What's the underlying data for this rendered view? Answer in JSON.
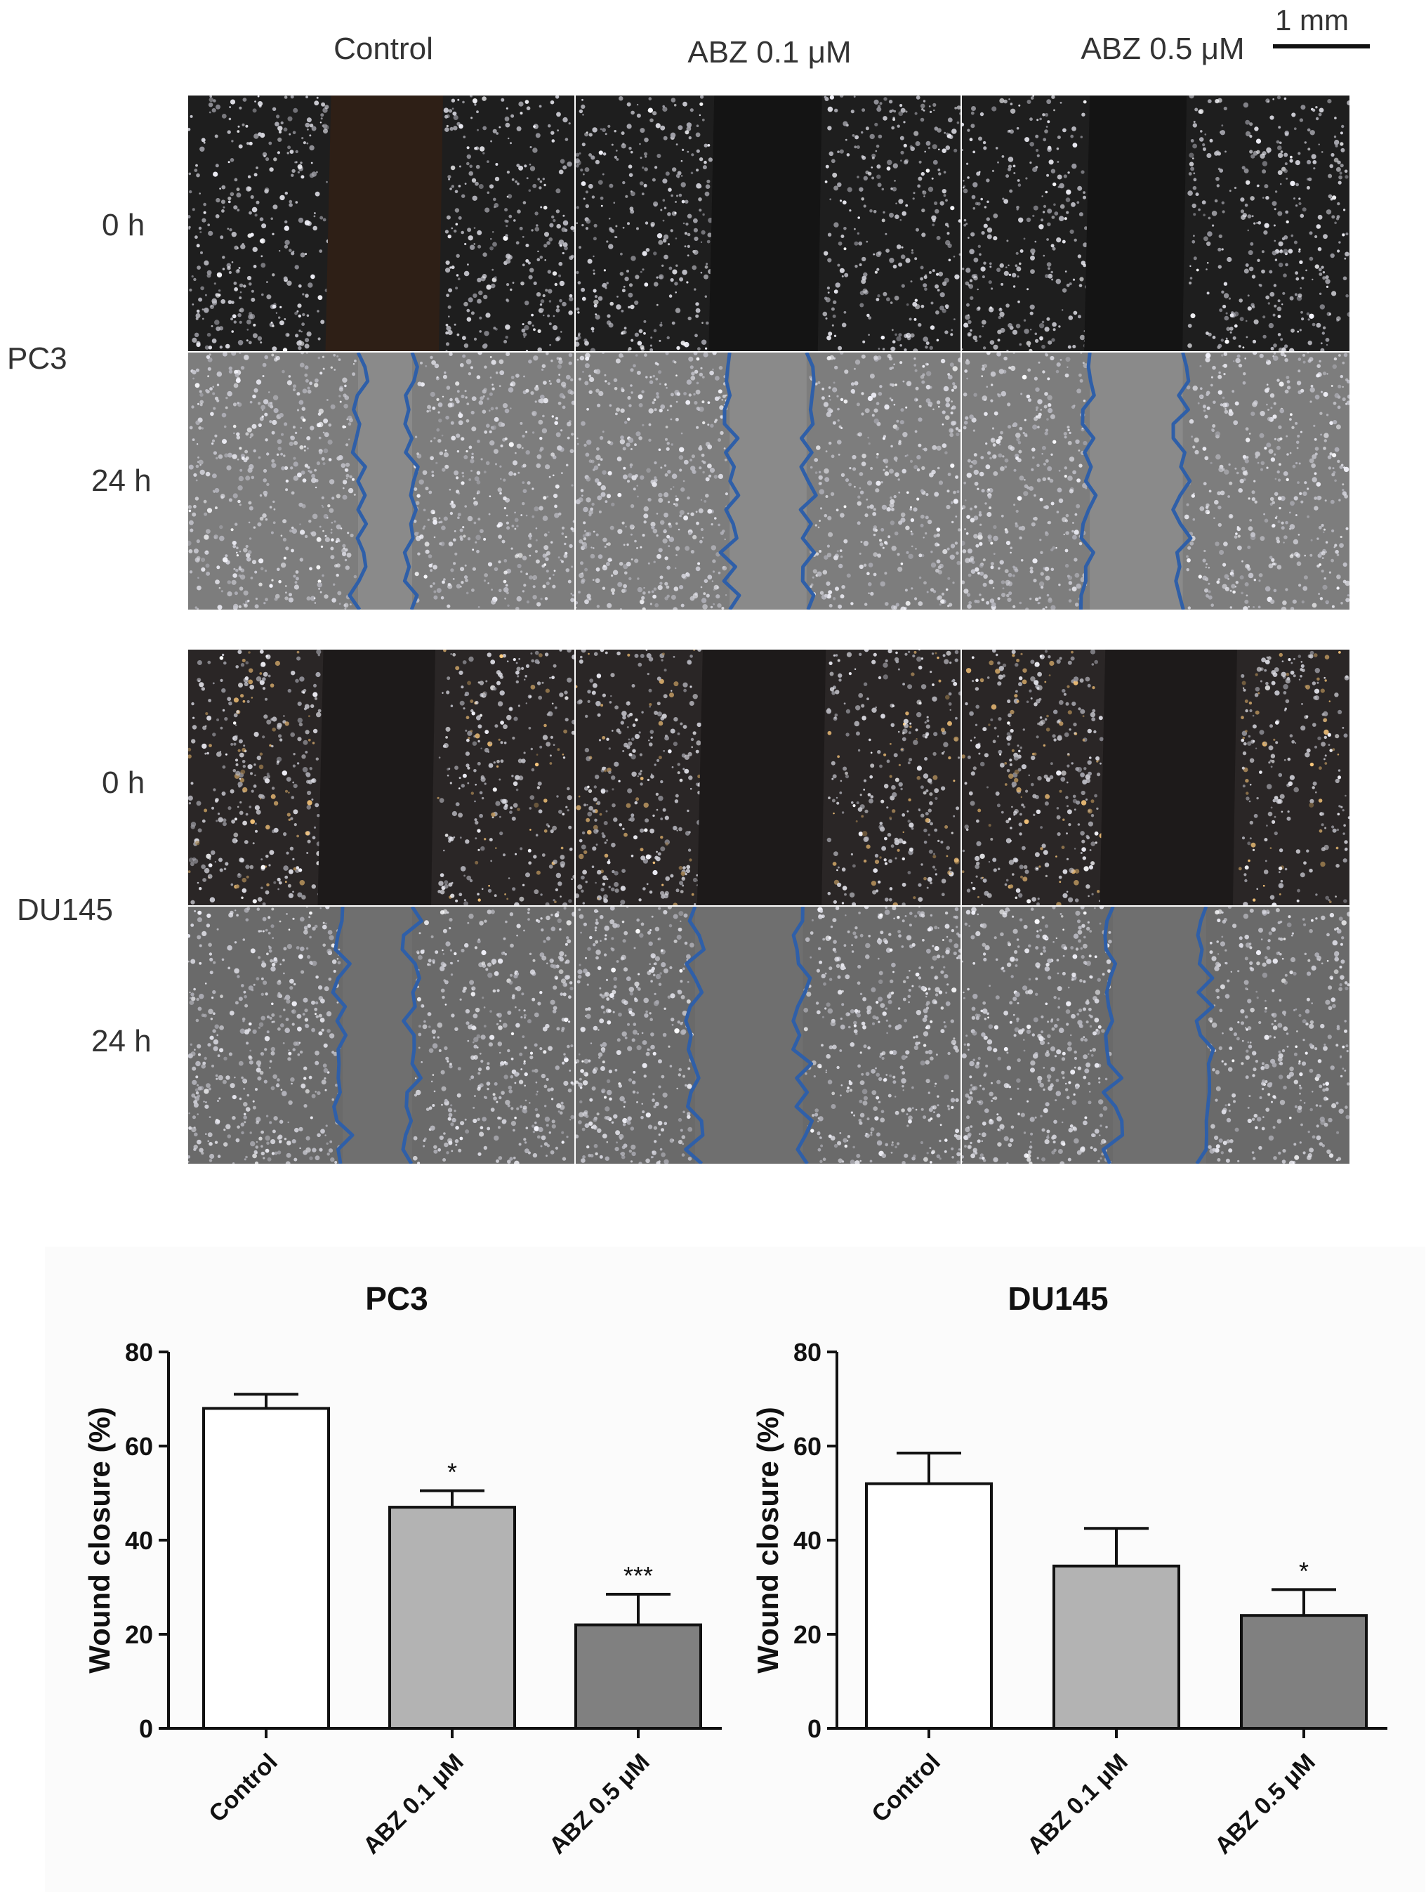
{
  "figure": {
    "column_headers": [
      "Control",
      "ABZ 0.1 μM",
      "ABZ 0.5 μM"
    ],
    "scale_bar_label": "1 mm",
    "groups": [
      {
        "cell_line": "PC3",
        "times": [
          "0 h",
          "24 h"
        ]
      },
      {
        "cell_line": "DU145",
        "times": [
          "0 h",
          "24 h"
        ]
      }
    ]
  },
  "colors": {
    "bar_control": "#ffffff",
    "bar_low": "#b3b3b3",
    "bar_high": "#808080",
    "wound_outline": "#2f5fa8",
    "pc3_dark": "#141414",
    "du145_dark": "#1c1c1c"
  },
  "chart_data": [
    {
      "type": "bar",
      "title": "PC3",
      "ylabel": "Wound closure (%)",
      "xlabel": "",
      "ylim": [
        0,
        80
      ],
      "yticks": [
        0,
        20,
        40,
        60,
        80
      ],
      "categories": [
        "Control",
        "ABZ 0.1 μM",
        "ABZ 0.5 μM"
      ],
      "values": [
        68,
        47,
        22
      ],
      "errors": [
        3,
        3.5,
        6.5
      ],
      "annotations": [
        "",
        "*",
        "***"
      ]
    },
    {
      "type": "bar",
      "title": "DU145",
      "ylabel": "Wound closure (%)",
      "xlabel": "",
      "ylim": [
        0,
        80
      ],
      "yticks": [
        0,
        20,
        40,
        60,
        80
      ],
      "categories": [
        "Control",
        "ABZ 0.1 μM",
        "ABZ 0.5 μM"
      ],
      "values": [
        52,
        34.5,
        24
      ],
      "errors": [
        6.5,
        8,
        5.5
      ],
      "annotations": [
        "",
        "",
        "*"
      ]
    }
  ]
}
